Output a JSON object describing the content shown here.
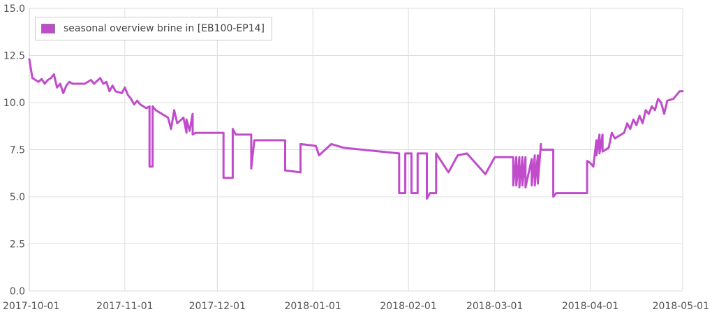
{
  "chart_data": {
    "type": "line",
    "title": "",
    "xlabel": "",
    "ylabel": "",
    "xlim": [
      "2017-10-01",
      "2018-05-01"
    ],
    "ylim": [
      0,
      15
    ],
    "grid": true,
    "legend_position": "top-left",
    "y_ticks": [
      "0.0",
      "2.5",
      "5.0",
      "7.5",
      "10.0",
      "12.5",
      "15.0"
    ],
    "x_ticks": [
      "2017-10-01",
      "2017-11-01",
      "2017-12-01",
      "2018-01-01",
      "2018-02-01",
      "2018-03-01",
      "2018-04-01",
      "2018-05-01"
    ],
    "series": [
      {
        "name": "seasonal overview brine in [EB100-EP14]",
        "color": "#c04ccc",
        "points": [
          [
            "2017-10-01",
            12.3
          ],
          [
            "2017-10-02",
            11.3
          ],
          [
            "2017-10-03",
            11.2
          ],
          [
            "2017-10-04",
            11.1
          ],
          [
            "2017-10-05",
            11.25
          ],
          [
            "2017-10-06",
            11.0
          ],
          [
            "2017-10-07",
            11.2
          ],
          [
            "2017-10-08",
            11.3
          ],
          [
            "2017-10-09",
            11.5
          ],
          [
            "2017-10-10",
            10.8
          ],
          [
            "2017-10-11",
            11.0
          ],
          [
            "2017-10-12",
            10.5
          ],
          [
            "2017-10-13",
            10.9
          ],
          [
            "2017-10-14",
            11.1
          ],
          [
            "2017-10-15",
            11.0
          ],
          [
            "2017-10-17",
            11.0
          ],
          [
            "2017-10-19",
            11.0
          ],
          [
            "2017-10-21",
            11.2
          ],
          [
            "2017-10-22",
            11.0
          ],
          [
            "2017-10-24",
            11.3
          ],
          [
            "2017-10-25",
            11.0
          ],
          [
            "2017-10-26",
            11.1
          ],
          [
            "2017-10-27",
            10.6
          ],
          [
            "2017-10-28",
            10.9
          ],
          [
            "2017-10-29",
            10.6
          ],
          [
            "2017-10-31",
            10.5
          ],
          [
            "2017-11-01",
            10.8
          ],
          [
            "2017-11-02",
            10.4
          ],
          [
            "2017-11-03",
            10.2
          ],
          [
            "2017-11-04",
            9.9
          ],
          [
            "2017-11-05",
            10.1
          ],
          [
            "2017-11-06",
            9.9
          ],
          [
            "2017-11-08",
            9.7
          ],
          [
            "2017-11-09",
            9.8
          ],
          [
            "2017-11-09",
            6.6
          ],
          [
            "2017-11-10",
            6.6
          ],
          [
            "2017-11-10",
            9.8
          ],
          [
            "2017-11-11",
            9.6
          ],
          [
            "2017-11-15",
            9.2
          ],
          [
            "2017-11-16",
            8.6
          ],
          [
            "2017-11-17",
            9.6
          ],
          [
            "2017-11-18",
            8.9
          ],
          [
            "2017-11-20",
            9.2
          ],
          [
            "2017-11-21",
            8.4
          ],
          [
            "2017-11-21",
            9.1
          ],
          [
            "2017-11-22",
            8.5
          ],
          [
            "2017-11-23",
            9.4
          ],
          [
            "2017-11-23",
            8.3
          ],
          [
            "2017-11-24",
            8.4
          ],
          [
            "2017-12-03",
            8.4
          ],
          [
            "2017-12-03",
            6.0
          ],
          [
            "2017-12-06",
            6.0
          ],
          [
            "2017-12-06",
            8.6
          ],
          [
            "2017-12-07",
            8.3
          ],
          [
            "2017-12-12",
            8.3
          ],
          [
            "2017-12-12",
            6.5
          ],
          [
            "2017-12-13",
            8.0
          ],
          [
            "2017-12-23",
            8.0
          ],
          [
            "2017-12-23",
            6.4
          ],
          [
            "2017-12-28",
            6.3
          ],
          [
            "2017-12-28",
            7.8
          ],
          [
            "2018-01-02",
            7.7
          ],
          [
            "2018-01-03",
            7.2
          ],
          [
            "2018-01-07",
            7.8
          ],
          [
            "2018-01-11",
            7.6
          ],
          [
            "2018-01-29",
            7.3
          ],
          [
            "2018-01-29",
            5.2
          ],
          [
            "2018-01-31",
            5.2
          ],
          [
            "2018-01-31",
            7.3
          ],
          [
            "2018-02-02",
            7.3
          ],
          [
            "2018-02-02",
            5.2
          ],
          [
            "2018-02-04",
            5.2
          ],
          [
            "2018-02-04",
            7.3
          ],
          [
            "2018-02-07",
            7.3
          ],
          [
            "2018-02-07",
            4.9
          ],
          [
            "2018-02-08",
            5.2
          ],
          [
            "2018-02-10",
            5.2
          ],
          [
            "2018-02-10",
            7.3
          ],
          [
            "2018-02-14",
            6.3
          ],
          [
            "2018-02-17",
            7.2
          ],
          [
            "2018-02-20",
            7.3
          ],
          [
            "2018-02-26",
            6.2
          ],
          [
            "2018-03-01",
            7.1
          ],
          [
            "2018-03-07",
            7.1
          ],
          [
            "2018-03-07",
            5.6
          ],
          [
            "2018-03-08",
            7.1
          ],
          [
            "2018-03-08",
            5.6
          ],
          [
            "2018-03-09",
            7.1
          ],
          [
            "2018-03-09",
            5.5
          ],
          [
            "2018-03-10",
            7.1
          ],
          [
            "2018-03-10",
            5.6
          ],
          [
            "2018-03-11",
            7.1
          ],
          [
            "2018-03-11",
            5.5
          ],
          [
            "2018-03-13",
            7.0
          ],
          [
            "2018-03-13",
            5.6
          ],
          [
            "2018-03-14",
            7.2
          ],
          [
            "2018-03-14",
            5.6
          ],
          [
            "2018-03-15",
            7.2
          ],
          [
            "2018-03-15",
            5.7
          ],
          [
            "2018-03-16",
            7.8
          ],
          [
            "2018-03-16",
            7.5
          ],
          [
            "2018-03-20",
            7.5
          ],
          [
            "2018-03-20",
            5.0
          ],
          [
            "2018-03-21",
            5.2
          ],
          [
            "2018-03-31",
            5.2
          ],
          [
            "2018-03-31",
            6.9
          ],
          [
            "2018-04-01",
            6.8
          ],
          [
            "2018-04-02",
            6.6
          ],
          [
            "2018-04-03",
            8.0
          ],
          [
            "2018-04-03",
            7.2
          ],
          [
            "2018-04-04",
            8.3
          ],
          [
            "2018-04-04",
            7.3
          ],
          [
            "2018-04-05",
            8.3
          ],
          [
            "2018-04-05",
            7.4
          ],
          [
            "2018-04-07",
            7.6
          ],
          [
            "2018-04-08",
            8.4
          ],
          [
            "2018-04-09",
            8.1
          ],
          [
            "2018-04-10",
            8.2
          ],
          [
            "2018-04-12",
            8.4
          ],
          [
            "2018-04-13",
            8.9
          ],
          [
            "2018-04-14",
            8.6
          ],
          [
            "2018-04-15",
            9.1
          ],
          [
            "2018-04-16",
            8.8
          ],
          [
            "2018-04-17",
            9.3
          ],
          [
            "2018-04-18",
            8.9
          ],
          [
            "2018-04-19",
            9.6
          ],
          [
            "2018-04-20",
            9.4
          ],
          [
            "2018-04-21",
            9.8
          ],
          [
            "2018-04-22",
            9.6
          ],
          [
            "2018-04-23",
            10.2
          ],
          [
            "2018-04-24",
            10.0
          ],
          [
            "2018-04-25",
            9.4
          ],
          [
            "2018-04-26",
            10.1
          ],
          [
            "2018-04-28",
            10.2
          ],
          [
            "2018-04-30",
            10.6
          ],
          [
            "2018-05-01",
            10.6
          ]
        ]
      }
    ]
  }
}
